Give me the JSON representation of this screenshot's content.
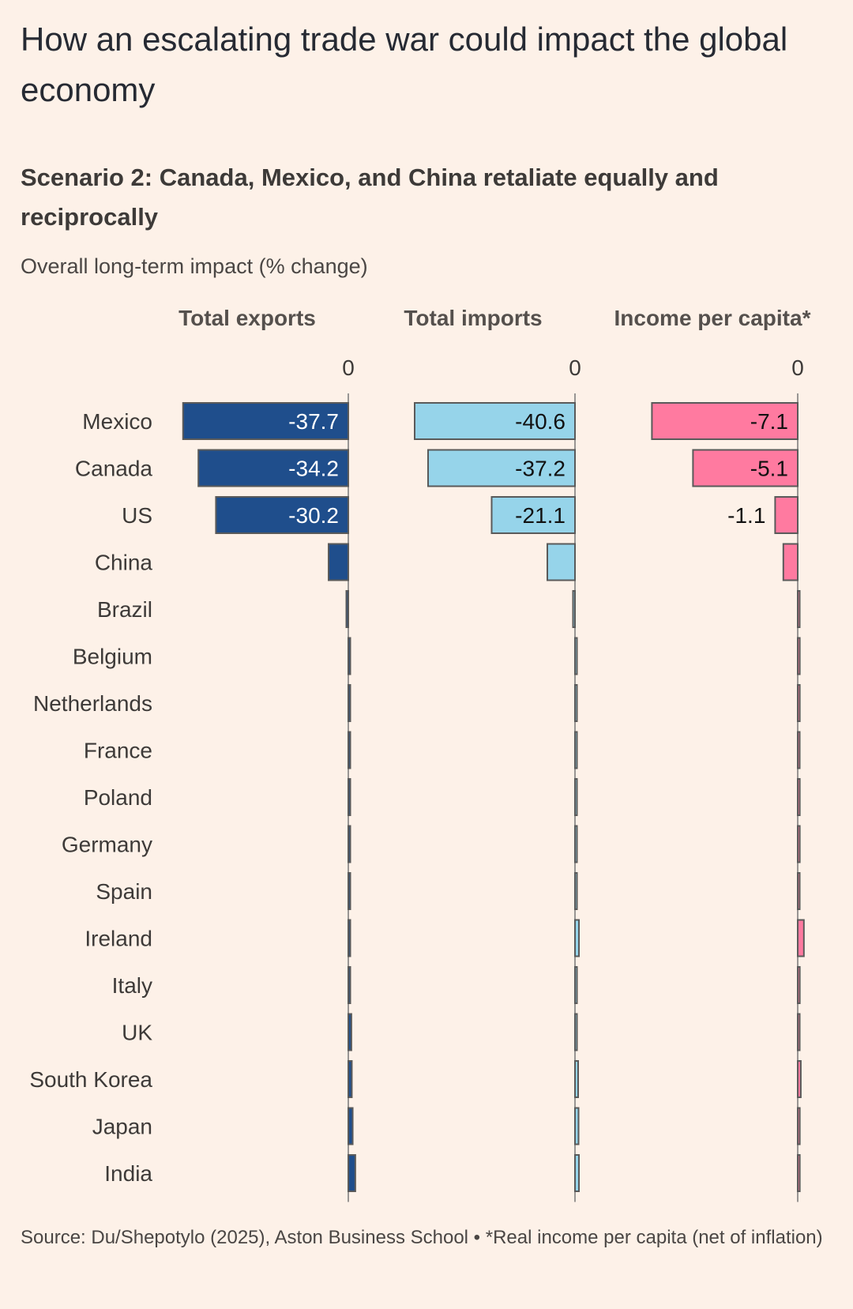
{
  "title": "How an escalating trade war could impact the global economy",
  "subtitle": "Scenario 2: Canada, Mexico, and China retaliate equally and reciprocally",
  "unit_label": "Overall long-term impact (% change)",
  "source": "Source: Du/Shepotylo (2025), Aston Business School • *Real income per capita (net of inflation)",
  "colors": {
    "exports": "#1f4e8c",
    "imports": "#96d4ea",
    "income": "#ff7aa0",
    "outline": "#5a5a5a",
    "text": "#3d3a38"
  },
  "chart_data": {
    "type": "bar",
    "orientation": "horizontal",
    "categories": [
      "Mexico",
      "Canada",
      "US",
      "China",
      "Brazil",
      "Belgium",
      "Netherlands",
      "France",
      "Poland",
      "Germany",
      "Spain",
      "Ireland",
      "Italy",
      "UK",
      "South Korea",
      "Japan",
      "India"
    ],
    "series": [
      {
        "name": "Total exports",
        "zero_label": "0",
        "values": [
          -37.7,
          -34.2,
          -30.2,
          -4.5,
          -0.3,
          0.2,
          0.3,
          0.2,
          0.3,
          0.3,
          0.2,
          0.4,
          0.4,
          0.7,
          0.8,
          1.0,
          1.6
        ],
        "labels": [
          "-37.7",
          "-34.2",
          "-30.2",
          null,
          null,
          null,
          null,
          null,
          null,
          null,
          null,
          null,
          null,
          null,
          null,
          null,
          null
        ]
      },
      {
        "name": "Total imports",
        "zero_label": "0",
        "values": [
          -40.6,
          -37.2,
          -21.1,
          -7.0,
          -0.2,
          0.2,
          0.3,
          0.2,
          0.2,
          0.3,
          0.2,
          1.0,
          0.3,
          0.2,
          0.8,
          0.9,
          1.0
        ],
        "labels": [
          "-40.6",
          "-37.2",
          "-21.1",
          null,
          null,
          null,
          null,
          null,
          null,
          null,
          null,
          null,
          null,
          null,
          null,
          null,
          null
        ]
      },
      {
        "name": "Income per capita*",
        "zero_label": "0",
        "values": [
          -7.1,
          -5.1,
          -1.1,
          -0.7,
          0.02,
          0.1,
          0.1,
          0.05,
          0.1,
          0.1,
          0.05,
          0.3,
          0.1,
          0.05,
          0.15,
          0.1,
          0.1
        ],
        "labels": [
          "-7.1",
          "-5.1",
          "-1.1",
          null,
          null,
          null,
          null,
          null,
          null,
          null,
          null,
          null,
          null,
          null,
          null,
          null,
          null
        ]
      }
    ]
  }
}
